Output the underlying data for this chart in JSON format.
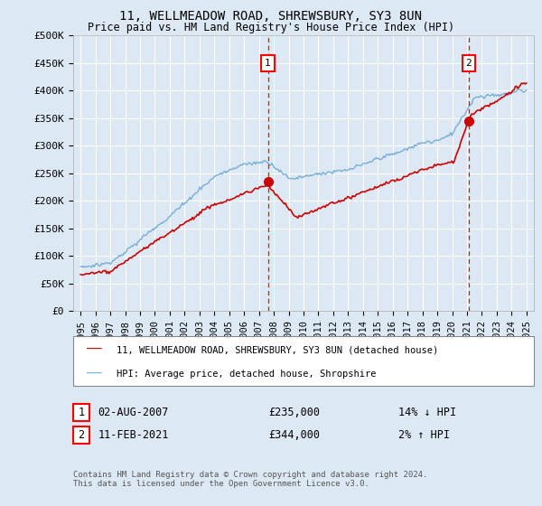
{
  "title": "11, WELLMEADOW ROAD, SHREWSBURY, SY3 8UN",
  "subtitle": "Price paid vs. HM Land Registry's House Price Index (HPI)",
  "legend_line1": "11, WELLMEADOW ROAD, SHREWSBURY, SY3 8UN (detached house)",
  "legend_line2": "HPI: Average price, detached house, Shropshire",
  "sale1_date": 2007.6,
  "sale1_price": 235000,
  "sale1_label": "02-AUG-2007",
  "sale1_display": "£235,000",
  "sale1_hpi": "14% ↓ HPI",
  "sale2_date": 2021.12,
  "sale2_price": 344000,
  "sale2_label": "11-FEB-2021",
  "sale2_display": "£344,000",
  "sale2_hpi": "2% ↑ HPI",
  "footer": "Contains HM Land Registry data © Crown copyright and database right 2024.\nThis data is licensed under the Open Government Licence v3.0.",
  "background_color": "#dce9f5",
  "plot_bg_color": "#dce9f5",
  "red_line_color": "#cc0000",
  "blue_line_color": "#7aadd4",
  "ylim": [
    0,
    500000
  ],
  "xlim": [
    1994.5,
    2025.5
  ],
  "yticks": [
    0,
    50000,
    100000,
    150000,
    200000,
    250000,
    300000,
    350000,
    400000,
    450000,
    500000
  ],
  "ytick_labels": [
    "£0",
    "£50K",
    "£100K",
    "£150K",
    "£200K",
    "£250K",
    "£300K",
    "£350K",
    "£400K",
    "£450K",
    "£500K"
  ],
  "xticks": [
    1995,
    1996,
    1997,
    1998,
    1999,
    2000,
    2001,
    2002,
    2003,
    2004,
    2005,
    2006,
    2007,
    2008,
    2009,
    2010,
    2011,
    2012,
    2013,
    2014,
    2015,
    2016,
    2017,
    2018,
    2019,
    2020,
    2021,
    2022,
    2023,
    2024,
    2025
  ]
}
